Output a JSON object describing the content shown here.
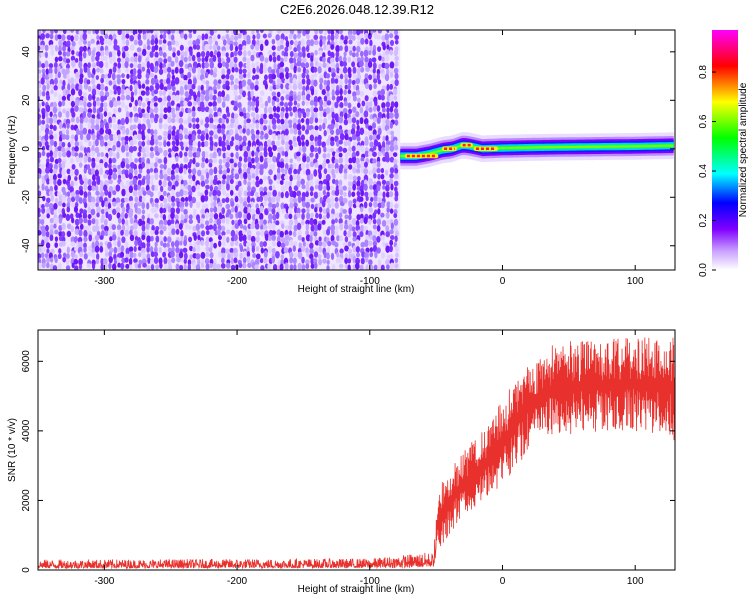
{
  "title": "C2E6.2026.048.12.39.R12",
  "chart_data": [
    {
      "type": "heatmap",
      "xlabel": "Height of straight line (km)",
      "ylabel": "Frequency (Hz)",
      "xlim": [
        -350,
        130
      ],
      "ylim": [
        -50,
        49
      ],
      "x_ticks": [
        -300,
        -200,
        -100,
        0,
        100
      ],
      "y_ticks": [
        -40,
        -20,
        0,
        20,
        40
      ],
      "noise_region": {
        "x": [
          -350,
          -77
        ],
        "y": [
          -50,
          49
        ]
      },
      "signal_x_range": [
        -77,
        130
      ],
      "signal_track": [
        {
          "x": -77,
          "y": -3.0
        },
        {
          "x": -65,
          "y": -3.0
        },
        {
          "x": -55,
          "y": -2.0
        },
        {
          "x": -45,
          "y": -0.5
        },
        {
          "x": -38,
          "y": 0.0
        },
        {
          "x": -30,
          "y": 1.5
        },
        {
          "x": -25,
          "y": 1.2
        },
        {
          "x": -15,
          "y": 0.0
        },
        {
          "x": 0,
          "y": 0.3
        },
        {
          "x": 30,
          "y": 0.6
        },
        {
          "x": 60,
          "y": 0.8
        },
        {
          "x": 100,
          "y": 1.0
        },
        {
          "x": 130,
          "y": 1.3
        }
      ],
      "peak_segments": [
        {
          "x": [
            -72,
            -50
          ],
          "y": -3.0
        },
        {
          "x": [
            -44,
            -36
          ],
          "y": 0.0
        },
        {
          "x": [
            -30,
            -24
          ],
          "y": 1.5
        },
        {
          "x": [
            -20,
            -5
          ],
          "y": 0.0
        }
      ],
      "colorbar": {
        "label": "Normalized spectral amplitude",
        "range": [
          0,
          0.97
        ],
        "ticks": [
          0.0,
          0.2,
          0.4,
          0.6,
          0.8
        ],
        "tick_labels": [
          "0.0",
          "0.2",
          "0.4",
          "0.6",
          "0.8"
        ],
        "colormap": [
          "#ffffff",
          "#8000ff",
          "#0000ff",
          "#00ffff",
          "#00ff00",
          "#ffff00",
          "#ff0000",
          "#ff00ff"
        ]
      }
    },
    {
      "type": "line",
      "xlabel": "Height of straight line (km)",
      "ylabel": "SNR (10 * v/v)",
      "xlim": [
        -350,
        130
      ],
      "ylim": [
        0,
        6900
      ],
      "x_ticks": [
        -300,
        -200,
        -100,
        0,
        100
      ],
      "y_ticks": [
        0,
        2000,
        4000,
        6000
      ],
      "line_color": "#e8302c",
      "envelope": [
        {
          "x": -350,
          "low": 50,
          "high": 300
        },
        {
          "x": -100,
          "low": 60,
          "high": 330
        },
        {
          "x": -60,
          "low": 80,
          "high": 500
        },
        {
          "x": -52,
          "low": 100,
          "high": 500
        },
        {
          "x": -48,
          "low": 600,
          "high": 2400
        },
        {
          "x": -40,
          "low": 1000,
          "high": 2900
        },
        {
          "x": -30,
          "low": 1600,
          "high": 3400
        },
        {
          "x": -20,
          "low": 1800,
          "high": 3800
        },
        {
          "x": -10,
          "low": 2100,
          "high": 4300
        },
        {
          "x": 0,
          "low": 2500,
          "high": 4900
        },
        {
          "x": 10,
          "low": 2900,
          "high": 5500
        },
        {
          "x": 20,
          "low": 3400,
          "high": 6000
        },
        {
          "x": 30,
          "low": 3700,
          "high": 6400
        },
        {
          "x": 50,
          "low": 3900,
          "high": 6600
        },
        {
          "x": 80,
          "low": 4000,
          "high": 6650
        },
        {
          "x": 100,
          "low": 4000,
          "high": 6700
        },
        {
          "x": 130,
          "low": 3700,
          "high": 6700
        }
      ]
    }
  ]
}
